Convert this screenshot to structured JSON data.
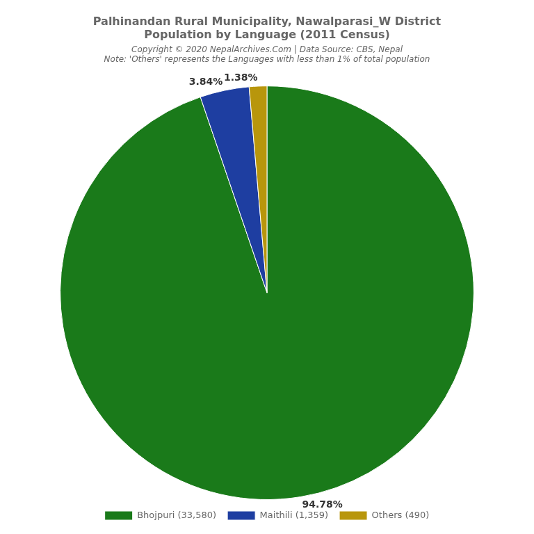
{
  "chart_data": {
    "type": "pie",
    "title": [
      "Palhinandan Rural Municipality, Nawalparasi_W District",
      "Population by Language (2011 Census)"
    ],
    "subtitle": [
      "Copyright © 2020 NepalArchives.Com | Data Source: CBS, Nepal",
      "Note: 'Others' represents the Languages with less than 1% of total population"
    ],
    "categories": [
      "Bhojpuri (33,580)",
      "Maithili (1,359)",
      "Others (490)"
    ],
    "values": [
      94.78,
      3.84,
      1.38
    ],
    "value_labels": [
      "94.78%",
      "3.84%",
      "1.38%"
    ],
    "colors": [
      "#1a7a1a",
      "#1e3ea1",
      "#b8960c"
    ],
    "data_labels": true,
    "legend": "bottom"
  }
}
